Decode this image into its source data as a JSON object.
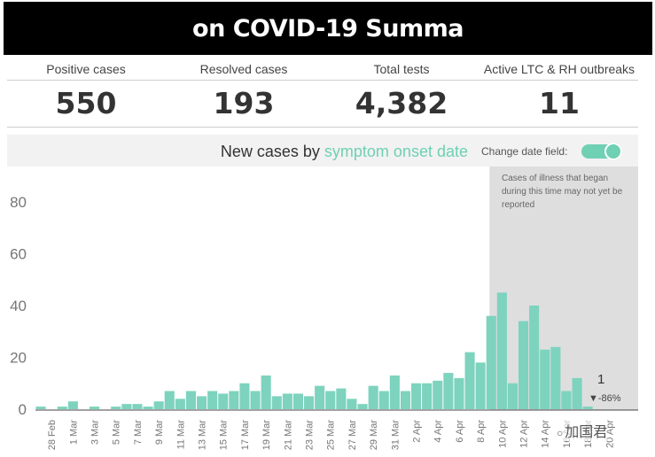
{
  "header": {
    "title": "on COVID-19 Summa"
  },
  "kpis": [
    {
      "label": "Positive cases",
      "value": "550"
    },
    {
      "label": "Resolved cases",
      "value": "193"
    },
    {
      "label": "Total tests",
      "value": "4,382"
    },
    {
      "label": "Active LTC & RH outbreaks",
      "value": "11"
    }
  ],
  "chart_header": {
    "title_prefix": "New cases by ",
    "title_accent": "symptom onset date",
    "toggle_label": "Change date field:",
    "toggle_on": true
  },
  "annotation": "Cases of illness that began during this time may not yet be reported",
  "last_value_label": "1",
  "change_label": "-86%",
  "change_icon": "down-triangle",
  "watermark": "加国君",
  "colors": {
    "bar": "#7dd3be",
    "accent": "#6fd0b3",
    "shade": "#dedede",
    "banner": "#000000"
  },
  "chart_data": {
    "type": "bar",
    "title": "New cases by symptom onset date",
    "xlabel": "",
    "ylabel": "",
    "ylim": [
      0,
      90
    ],
    "yticks": [
      0,
      20,
      40,
      60,
      80
    ],
    "grid": false,
    "x_tick_labels": [
      "28 Feb",
      "1 Mar",
      "3 Mar",
      "5 Mar",
      "7 Mar",
      "9 Mar",
      "11 Mar",
      "13 Mar",
      "15 Mar",
      "17 Mar",
      "19 Mar",
      "21 Mar",
      "23 Mar",
      "25 Mar",
      "27 Mar",
      "29 Mar",
      "31 Mar",
      "2 Apr",
      "4 Apr",
      "6 Apr",
      "8 Apr",
      "10 Apr",
      "12 Apr",
      "14 Apr",
      "16 Apr",
      "18 Apr",
      "20 Apr"
    ],
    "values": [
      1,
      0,
      1,
      3,
      0,
      1,
      0,
      1,
      2,
      2,
      1,
      3,
      7,
      4,
      7,
      5,
      7,
      6,
      7,
      10,
      7,
      13,
      5,
      6,
      6,
      5,
      9,
      7,
      8,
      4,
      2,
      9,
      7,
      13,
      7,
      10,
      10,
      11,
      14,
      12,
      22,
      18,
      36,
      45,
      10,
      34,
      40,
      23,
      24,
      7,
      12,
      1
    ],
    "shaded_from_index": 43
  }
}
